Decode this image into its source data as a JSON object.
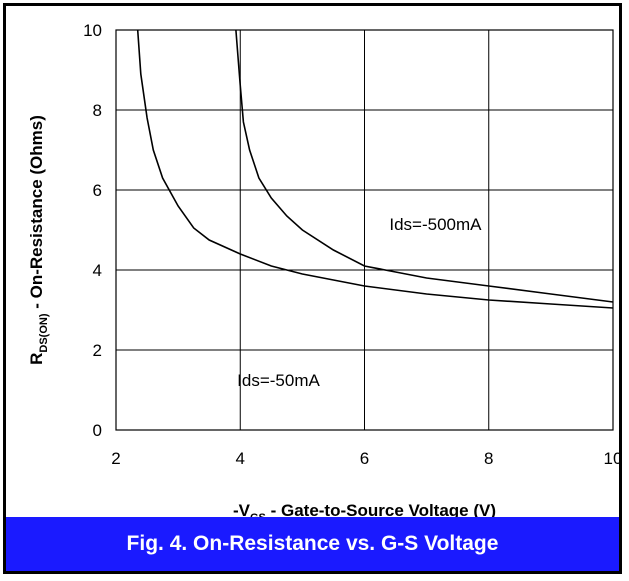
{
  "chart_data": {
    "type": "line",
    "title": "",
    "xlabel": {
      "prefix": "-V",
      "sub": "GS",
      "suffix": " - Gate-to-Source Voltage (V)"
    },
    "ylabel": {
      "prefix": "R",
      "sub": "DS(ON)",
      "suffix": " - On-Resistance (Ohms)"
    },
    "xlim": [
      2,
      10
    ],
    "ylim": [
      0,
      10
    ],
    "xticks": [
      "2",
      "4",
      "6",
      "8",
      "10"
    ],
    "yticks": [
      "0",
      "2",
      "4",
      "6",
      "8",
      "10"
    ],
    "grid": true,
    "series": [
      {
        "name": "Ids=-50mA",
        "x": [
          2.35,
          2.4,
          2.5,
          2.6,
          2.75,
          3.0,
          3.25,
          3.5,
          4.0,
          4.5,
          5.0,
          6.0,
          7.0,
          8.0,
          9.0,
          10.0
        ],
        "y": [
          10.0,
          8.9,
          7.8,
          7.0,
          6.3,
          5.6,
          5.05,
          4.75,
          4.4,
          4.1,
          3.9,
          3.6,
          3.4,
          3.25,
          3.15,
          3.05
        ]
      },
      {
        "name": "Ids=-500mA",
        "x": [
          3.93,
          3.97,
          4.0,
          4.05,
          4.15,
          4.3,
          4.5,
          4.75,
          5.0,
          5.5,
          6.0,
          6.5,
          7.0,
          8.0,
          9.0,
          10.0
        ],
        "y": [
          10.0,
          9.2,
          8.6,
          7.7,
          7.0,
          6.3,
          5.8,
          5.35,
          5.0,
          4.5,
          4.1,
          3.95,
          3.8,
          3.6,
          3.4,
          3.2
        ]
      }
    ],
    "annotations": [
      {
        "text": "Ids=-500mA",
        "x": 6.4,
        "y": 5.0
      },
      {
        "text": "Ids=-50mA",
        "x": 3.95,
        "y": 1.1
      }
    ]
  },
  "caption": {
    "text": "Fig. 4.  On-Resistance vs. G-S Voltage",
    "background": "#1a1aff",
    "color": "#ffffff"
  }
}
